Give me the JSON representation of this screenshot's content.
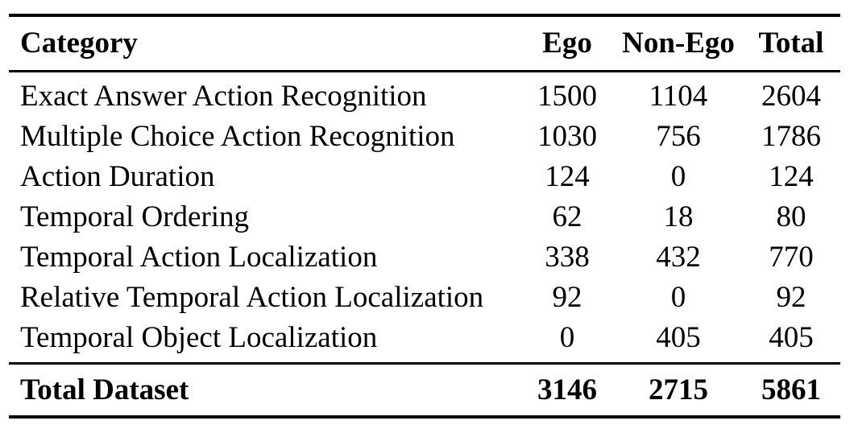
{
  "table": {
    "headers": {
      "category": "Category",
      "ego": "Ego",
      "non_ego": "Non-Ego",
      "total": "Total"
    },
    "rows": [
      {
        "category": "Exact Answer Action Recognition",
        "ego": "1500",
        "non_ego": "1104",
        "total": "2604"
      },
      {
        "category": "Multiple Choice Action Recognition",
        "ego": "1030",
        "non_ego": "756",
        "total": "1786"
      },
      {
        "category": "Action Duration",
        "ego": "124",
        "non_ego": "0",
        "total": "124"
      },
      {
        "category": "Temporal Ordering",
        "ego": "62",
        "non_ego": "18",
        "total": "80"
      },
      {
        "category": "Temporal Action Localization",
        "ego": "338",
        "non_ego": "432",
        "total": "770"
      },
      {
        "category": "Relative Temporal Action Localization",
        "ego": "92",
        "non_ego": "0",
        "total": "92"
      },
      {
        "category": "Temporal Object Localization",
        "ego": "0",
        "non_ego": "405",
        "total": "405"
      }
    ],
    "footer": {
      "category": "Total Dataset",
      "ego": "3146",
      "non_ego": "2715",
      "total": "5861"
    }
  },
  "colors": {
    "text": "#000000",
    "rule": "#000000",
    "background": "#ffffff"
  }
}
